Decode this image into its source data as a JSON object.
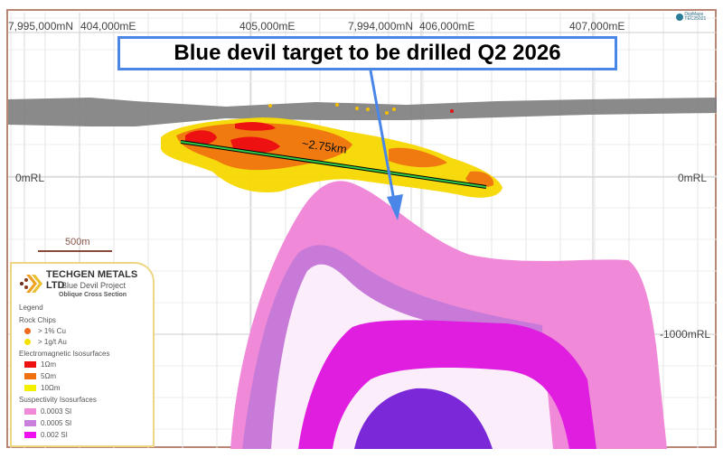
{
  "callout": {
    "text": "Blue devil target to be drilled Q2 2026",
    "color": "#4a86e8"
  },
  "top_axis": {
    "labels": [
      "7,995,000mN",
      "404,000mE",
      "405,000mE",
      "7,994,000mN",
      "406,000mE",
      "407,000mE"
    ]
  },
  "right_axis": {
    "labels": [
      "0mRL",
      "-1000mRL"
    ]
  },
  "left_axis": {
    "labels": [
      "0mRL"
    ]
  },
  "scale_bar": {
    "label": "500m"
  },
  "measurement": {
    "label": "~2.75km"
  },
  "watermark": {
    "line1": "DigiMaps",
    "line2": "TEC25021"
  },
  "legend": {
    "company": "TECHGEN METALS LTD",
    "project": "Blue Devil Project",
    "section": "Oblique Cross Section",
    "title": "Legend",
    "rock_chips_title": "Rock Chips",
    "rock_chips": [
      {
        "label": "> 1% Cu",
        "color": "#f06a1e"
      },
      {
        "label": "> 1g/t Au",
        "color": "#f5e000"
      }
    ],
    "em_title": "Electromagnetic Isosurfaces",
    "em": [
      {
        "label": "1Ωm",
        "color": "#ee1111"
      },
      {
        "label": "5Ωm",
        "color": "#f07010"
      },
      {
        "label": "10Ωm",
        "color": "#f5f000"
      }
    ],
    "sus_title": "Suspectivity Isosurfaces",
    "sus": [
      {
        "label": "0.0003 SI",
        "color": "#f08ad8"
      },
      {
        "label": "0.0005 SI",
        "color": "#c880dc"
      },
      {
        "label": "0.002 SI",
        "color": "#ee10ee"
      }
    ]
  }
}
